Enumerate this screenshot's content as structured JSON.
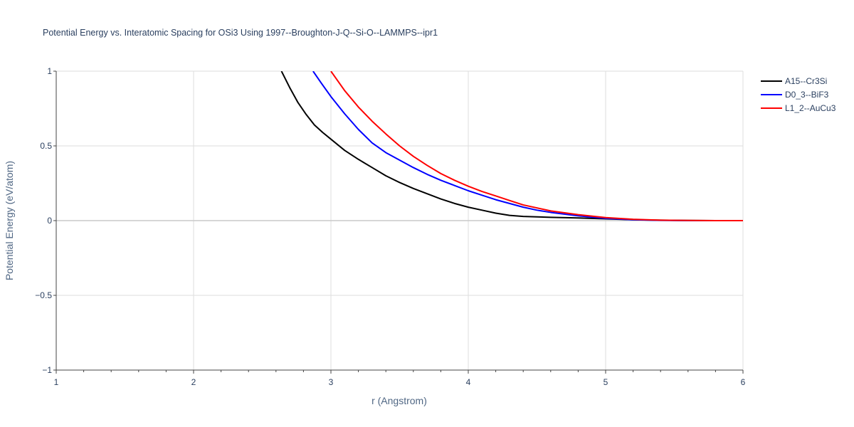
{
  "chart_data": {
    "type": "line",
    "title": "Potential Energy vs. Interatomic Spacing for OSi3 Using 1997--Broughton-J-Q--Si-O--LAMMPS--ipr1",
    "xlabel": "r (Angstrom)",
    "ylabel": "Potential Energy (eV/atom)",
    "xlim": [
      1,
      6
    ],
    "ylim": [
      -1,
      1
    ],
    "x_ticks": [
      "1",
      "2",
      "3",
      "4",
      "5",
      "6"
    ],
    "y_ticks": [
      "1",
      "0.5",
      "0",
      "−0.5",
      "−1"
    ],
    "grid": true,
    "legend_position": "top-right",
    "series": [
      {
        "name": "A15--Cr3Si",
        "color": "#000000",
        "x": [
          2.64,
          2.7,
          2.76,
          2.82,
          2.88,
          2.94,
          3.0,
          3.1,
          3.2,
          3.3,
          3.4,
          3.5,
          3.6,
          3.7,
          3.8,
          3.9,
          4.0,
          4.1,
          4.2,
          4.3,
          4.4,
          4.6,
          4.8,
          5.0,
          5.2,
          5.4,
          5.6,
          5.8,
          6.0
        ],
        "y": [
          1.0,
          0.89,
          0.79,
          0.71,
          0.64,
          0.59,
          0.545,
          0.47,
          0.41,
          0.355,
          0.3,
          0.255,
          0.215,
          0.18,
          0.145,
          0.115,
          0.09,
          0.07,
          0.05,
          0.035,
          0.028,
          0.022,
          0.018,
          0.012,
          0.006,
          0.003,
          0.001,
          0.0,
          0.0
        ]
      },
      {
        "name": "D0_3--BiF3",
        "color": "#0000ff",
        "x": [
          2.87,
          2.93,
          3.0,
          3.1,
          3.2,
          3.3,
          3.4,
          3.5,
          3.6,
          3.7,
          3.8,
          3.9,
          4.0,
          4.1,
          4.2,
          4.3,
          4.4,
          4.5,
          4.6,
          4.8,
          5.0,
          5.2,
          5.4,
          5.6,
          5.8,
          6.0
        ],
        "y": [
          1.0,
          0.92,
          0.83,
          0.715,
          0.61,
          0.52,
          0.455,
          0.405,
          0.355,
          0.31,
          0.27,
          0.235,
          0.2,
          0.17,
          0.14,
          0.115,
          0.09,
          0.07,
          0.055,
          0.032,
          0.015,
          0.006,
          0.002,
          0.0,
          0.0,
          0.0
        ]
      },
      {
        "name": "L1_2--AuCu3",
        "color": "#ff0000",
        "x": [
          3.0,
          3.1,
          3.2,
          3.3,
          3.4,
          3.5,
          3.6,
          3.7,
          3.8,
          3.9,
          4.0,
          4.1,
          4.2,
          4.3,
          4.4,
          4.6,
          4.8,
          5.0,
          5.2,
          5.4,
          5.6,
          5.8,
          6.0
        ],
        "y": [
          1.0,
          0.87,
          0.76,
          0.665,
          0.58,
          0.5,
          0.43,
          0.37,
          0.315,
          0.27,
          0.23,
          0.195,
          0.165,
          0.135,
          0.105,
          0.065,
          0.04,
          0.02,
          0.009,
          0.003,
          0.001,
          0.0,
          0.0
        ]
      }
    ]
  }
}
